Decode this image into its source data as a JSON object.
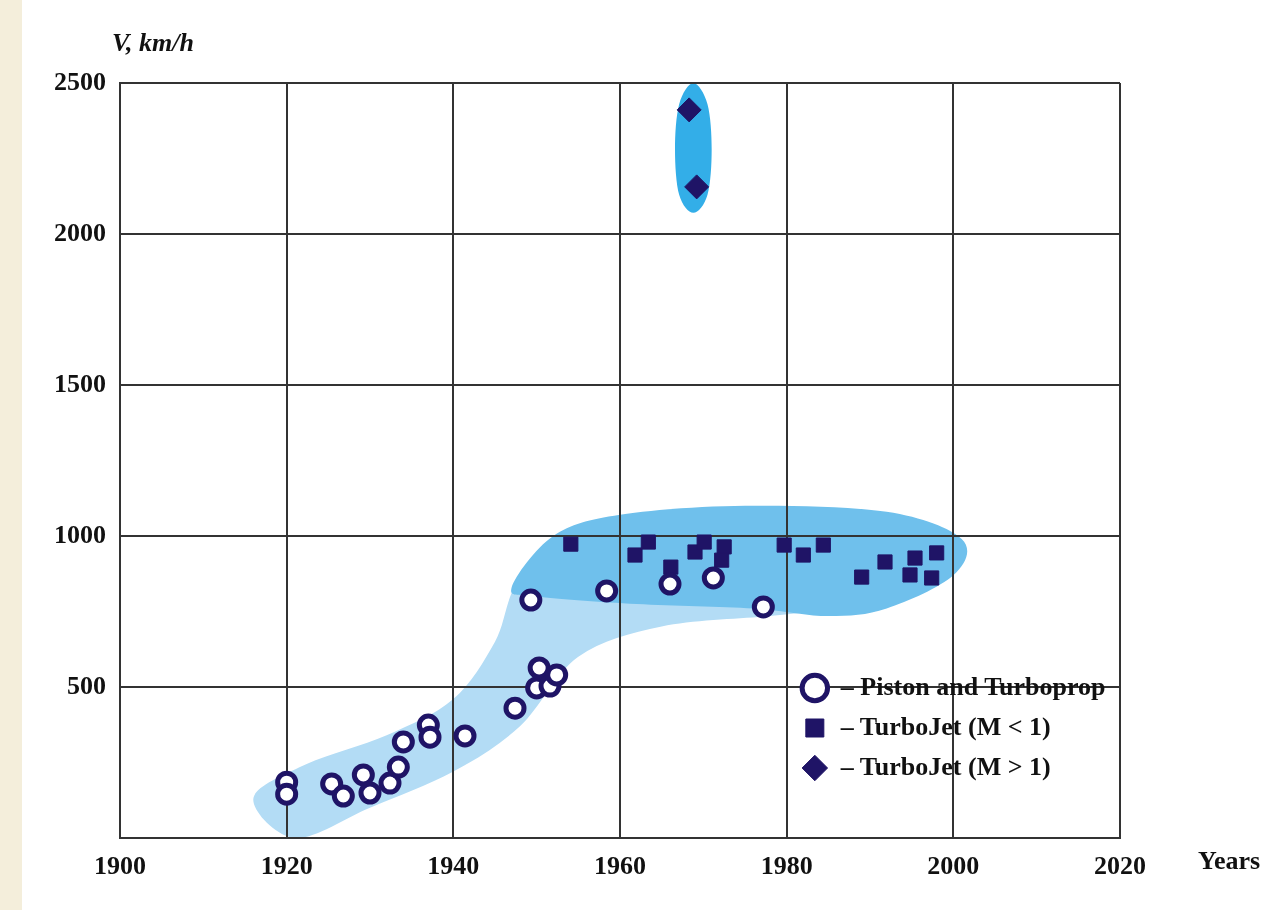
{
  "chart_data": {
    "type": "scatter",
    "xlabel": "Years",
    "ylabel": "V, km/h",
    "xlim": [
      1900,
      2020
    ],
    "xticks": [
      1900,
      1920,
      1940,
      1960,
      1980,
      2000,
      2020
    ],
    "ylim": [
      0,
      2500
    ],
    "yticks": [
      500,
      1000,
      1500,
      2000,
      2500
    ],
    "grid": true,
    "legend": "bottom right",
    "series": [
      {
        "name": "– Piston and Turboprop",
        "color": "#1f1466",
        "marker": "circle",
        "x": [
          1920,
          1920,
          1925.4,
          1926.8,
          1929.2,
          1930,
          1932.4,
          1933.4,
          1934,
          1937,
          1937.2,
          1941.4,
          1947.4,
          1949.3,
          1950,
          1950.3,
          1951.6,
          1952.4,
          1958.4,
          1966,
          1971.2,
          1977.2
        ],
        "values": [
          185,
          145,
          179,
          139,
          209,
          149,
          182,
          235,
          318,
          374,
          334,
          338,
          430,
          788,
          497,
          563,
          503,
          540,
          818,
          841,
          861,
          765
        ]
      },
      {
        "name": "– TurboJet (M < 1)",
        "color": "#1f1466",
        "marker": "square",
        "x": [
          1954.1,
          1961.8,
          1963.4,
          1966.1,
          1969,
          1970.1,
          1972.5,
          1972.2,
          1979.7,
          1982,
          1984.4,
          1989,
          1991.8,
          1994.8,
          1995.4,
          1997.4,
          1998
        ],
        "values": [
          973,
          937,
          980,
          897,
          947,
          980,
          964,
          920,
          970,
          937,
          970,
          864,
          914,
          871,
          927,
          861,
          944
        ]
      },
      {
        "name": "– TurboJet (M > 1)",
        "color": "#1f1466",
        "marker": "diamond",
        "x": [
          1968.3,
          1969.2
        ],
        "values": [
          2411,
          2156
        ]
      }
    ]
  }
}
